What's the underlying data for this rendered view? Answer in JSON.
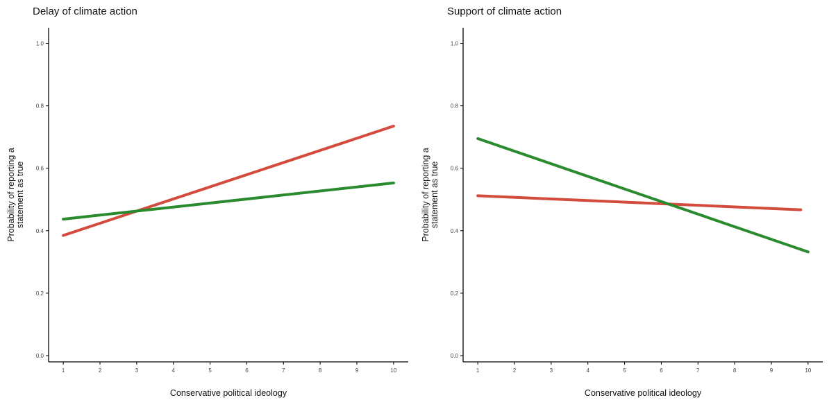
{
  "colors": {
    "red": "#d24b3c",
    "green": "#2a8a2e",
    "axis": "#000000"
  },
  "chart_data": [
    {
      "type": "line",
      "title": "Delay of climate action",
      "xlabel": "Conservative political ideology",
      "ylabel_lines": [
        "Probability of reporting a",
        "statement as true"
      ],
      "x_ticks": [
        1,
        2,
        3,
        4,
        5,
        6,
        7,
        8,
        9,
        10
      ],
      "y_ticks": [
        "0.0",
        "0.2",
        "0.4",
        "0.6",
        "0.8",
        "1.0"
      ],
      "xlim": [
        0.6,
        10.4
      ],
      "ylim": [
        -0.02,
        1.05
      ],
      "grid": false,
      "series": [
        {
          "color": "#d24b3c",
          "x": [
            1,
            10
          ],
          "y": [
            0.385,
            0.735
          ]
        },
        {
          "color": "#2a8a2e",
          "x": [
            1,
            10
          ],
          "y": [
            0.437,
            0.553
          ]
        }
      ]
    },
    {
      "type": "line",
      "title": "Support of climate action",
      "xlabel": "Conservative political ideology",
      "ylabel_lines": [
        "Probability of reporting a",
        "statement as true"
      ],
      "x_ticks": [
        1,
        2,
        3,
        4,
        5,
        6,
        7,
        8,
        9,
        10
      ],
      "y_ticks": [
        "0.0",
        "0.2",
        "0.4",
        "0.6",
        "0.8",
        "1.0"
      ],
      "xlim": [
        0.6,
        10.4
      ],
      "ylim": [
        -0.02,
        1.05
      ],
      "grid": false,
      "series": [
        {
          "color": "#d24b3c",
          "x": [
            1,
            9.8
          ],
          "y": [
            0.512,
            0.467
          ]
        },
        {
          "color": "#2a8a2e",
          "x": [
            1,
            10
          ],
          "y": [
            0.695,
            0.332
          ]
        }
      ]
    }
  ]
}
